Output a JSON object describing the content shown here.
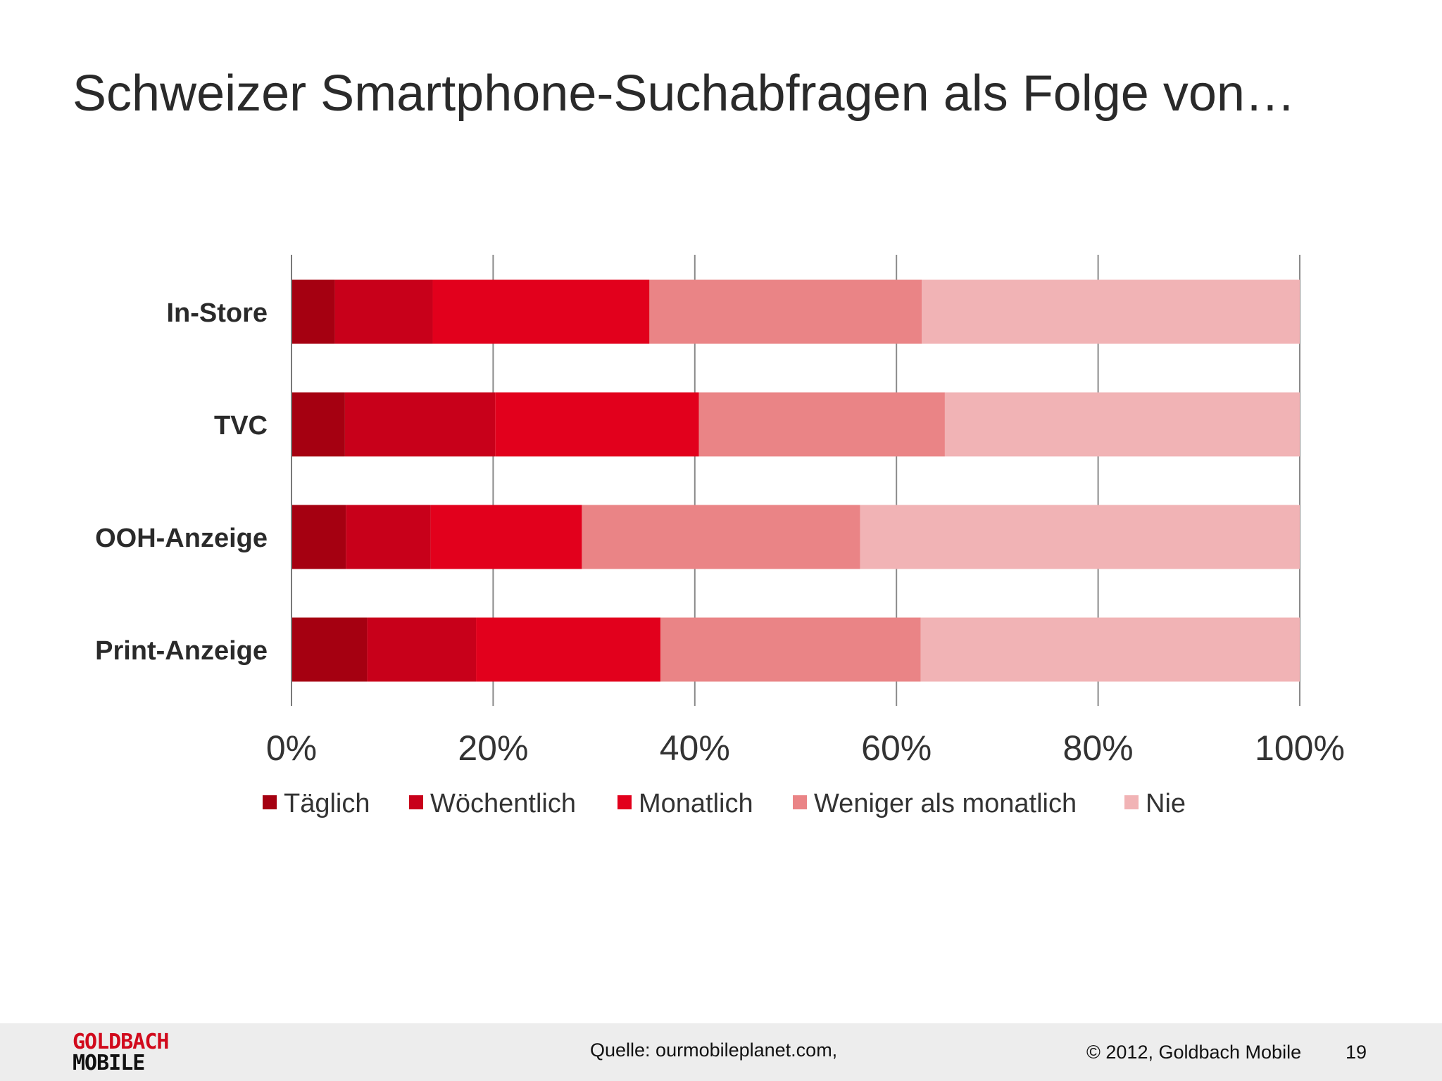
{
  "slide": {
    "title": "Schweizer Smartphone-Suchabfragen als Folge von…",
    "source": "Quelle: ourmobileplanet.com,",
    "copyright": "© 2012, Goldbach Mobile",
    "page_number": "19",
    "logo_top": "GOLDBACH",
    "logo_bottom": "MOBILE"
  },
  "chart_data": {
    "type": "bar",
    "orientation": "horizontal",
    "stacked": true,
    "normalized": true,
    "categories": [
      "In-Store",
      "TVC",
      "OOH-Anzeige",
      "Print-Anzeige"
    ],
    "series": [
      {
        "name": "Täglich",
        "color": "#a50011",
        "values": [
          4.3,
          5.3,
          5.4,
          7.5
        ]
      },
      {
        "name": "Wöchentlich",
        "color": "#c8001a",
        "values": [
          9.7,
          14.9,
          8.4,
          10.8
        ]
      },
      {
        "name": "Monatlich",
        "color": "#e2001c",
        "values": [
          21.5,
          20.2,
          15.0,
          18.3
        ]
      },
      {
        "name": "Weniger als monatlich",
        "color": "#ea8486",
        "values": [
          27.0,
          24.4,
          27.6,
          25.8
        ]
      },
      {
        "name": "Nie",
        "color": "#f1b3b5",
        "values": [
          37.5,
          35.2,
          43.6,
          37.6
        ]
      }
    ],
    "xlim": [
      0,
      100
    ],
    "xticks": [
      "0%",
      "20%",
      "40%",
      "60%",
      "80%",
      "100%"
    ],
    "grid": true,
    "legend_position": "bottom"
  }
}
